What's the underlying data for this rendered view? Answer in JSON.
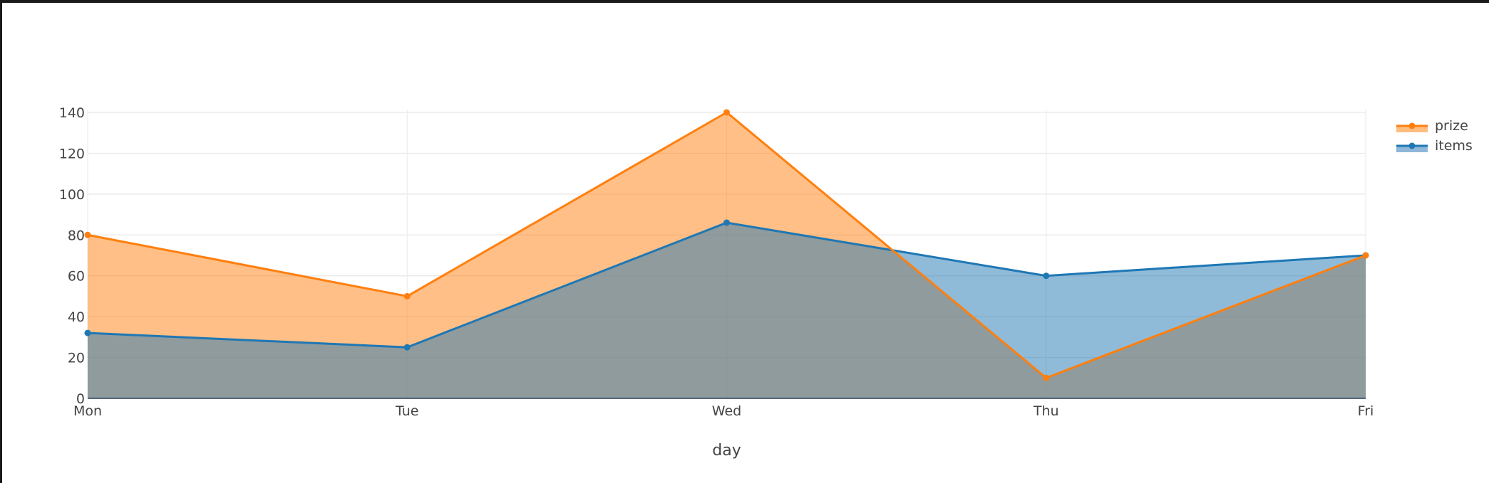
{
  "chart_data": {
    "type": "area",
    "categories": [
      "Mon",
      "Tue",
      "Wed",
      "Thu",
      "Fri"
    ],
    "series": [
      {
        "name": "items",
        "values": [
          32,
          25,
          86,
          60,
          70
        ],
        "color": "#1f77b4",
        "fill": "#8fb7d9"
      },
      {
        "name": "prize",
        "values": [
          80,
          50,
          140,
          10,
          70
        ],
        "color": "#ff7f0e",
        "fill": "#ffbe80"
      }
    ],
    "legend_order": [
      "prize",
      "items"
    ],
    "title": "",
    "xlabel": "day",
    "ylabel": "",
    "ylim": [
      0,
      140
    ],
    "yticks": [
      0,
      20,
      40,
      60,
      80,
      100,
      120,
      140
    ],
    "grid": true,
    "legend_position": "top-right",
    "overlap_color": "#c69b70"
  }
}
